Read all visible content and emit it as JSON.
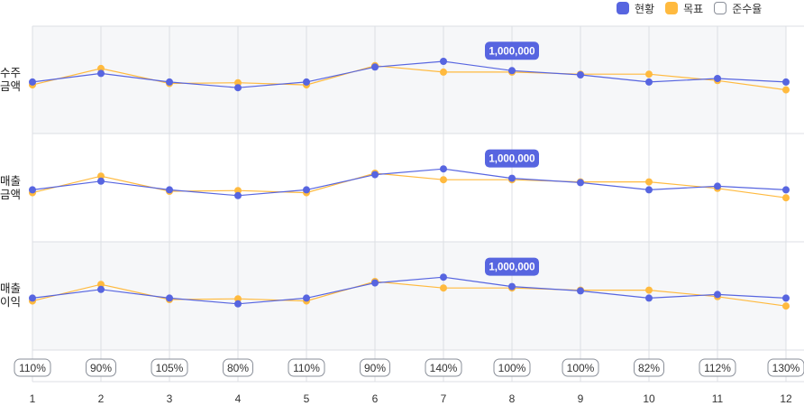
{
  "legend": {
    "current_label": "현황",
    "target_label": "목표",
    "rate_label": "준수율"
  },
  "colors": {
    "current": "#5765e0",
    "target": "#ffba3f",
    "panel_bg": "#f6f7f9",
    "grid": "#dcdfe4",
    "badge": "#5765e0"
  },
  "chart_data": [
    {
      "type": "line",
      "row_label": "수주\n금액",
      "x": [
        1,
        2,
        3,
        4,
        5,
        6,
        7,
        8,
        9,
        10,
        11,
        12
      ],
      "series": [
        {
          "name": "현황",
          "values": [
            5.2,
            6.4,
            5.2,
            4.4,
            5.2,
            7.3,
            8.1,
            6.8,
            6.2,
            5.2,
            5.7,
            5.2
          ]
        },
        {
          "name": "목표",
          "values": [
            4.8,
            7.1,
            5.0,
            5.1,
            4.8,
            7.5,
            6.6,
            6.6,
            6.3,
            6.3,
            5.4,
            4.1
          ]
        }
      ],
      "annotation": {
        "x": 8,
        "label": "1,000,000"
      }
    },
    {
      "type": "line",
      "row_label": "매출\n금액",
      "x": [
        1,
        2,
        3,
        4,
        5,
        6,
        7,
        8,
        9,
        10,
        11,
        12
      ],
      "series": [
        {
          "name": "현황",
          "values": [
            5.2,
            6.4,
            5.2,
            4.4,
            5.2,
            7.3,
            8.1,
            6.8,
            6.2,
            5.2,
            5.7,
            5.2
          ]
        },
        {
          "name": "목표",
          "values": [
            4.8,
            7.1,
            5.0,
            5.1,
            4.8,
            7.5,
            6.6,
            6.6,
            6.3,
            6.3,
            5.4,
            4.1
          ]
        }
      ],
      "annotation": {
        "x": 8,
        "label": "1,000,000"
      }
    },
    {
      "type": "line",
      "row_label": "매출\n이익",
      "x": [
        1,
        2,
        3,
        4,
        5,
        6,
        7,
        8,
        9,
        10,
        11,
        12
      ],
      "series": [
        {
          "name": "현황",
          "values": [
            5.2,
            6.4,
            5.2,
            4.4,
            5.2,
            7.3,
            8.1,
            6.8,
            6.2,
            5.2,
            5.7,
            5.2
          ]
        },
        {
          "name": "목표",
          "values": [
            4.8,
            7.1,
            5.0,
            5.1,
            4.8,
            7.5,
            6.6,
            6.6,
            6.3,
            6.3,
            5.4,
            4.1
          ]
        }
      ],
      "annotation": {
        "x": 8,
        "label": "1,000,000"
      }
    }
  ],
  "compliance_rates": [
    "110%",
    "90%",
    "105%",
    "80%",
    "110%",
    "90%",
    "140%",
    "100%",
    "100%",
    "82%",
    "112%",
    "130%"
  ],
  "x_ticks": [
    "1",
    "2",
    "3",
    "4",
    "5",
    "6",
    "7",
    "8",
    "9",
    "10",
    "11",
    "12"
  ]
}
